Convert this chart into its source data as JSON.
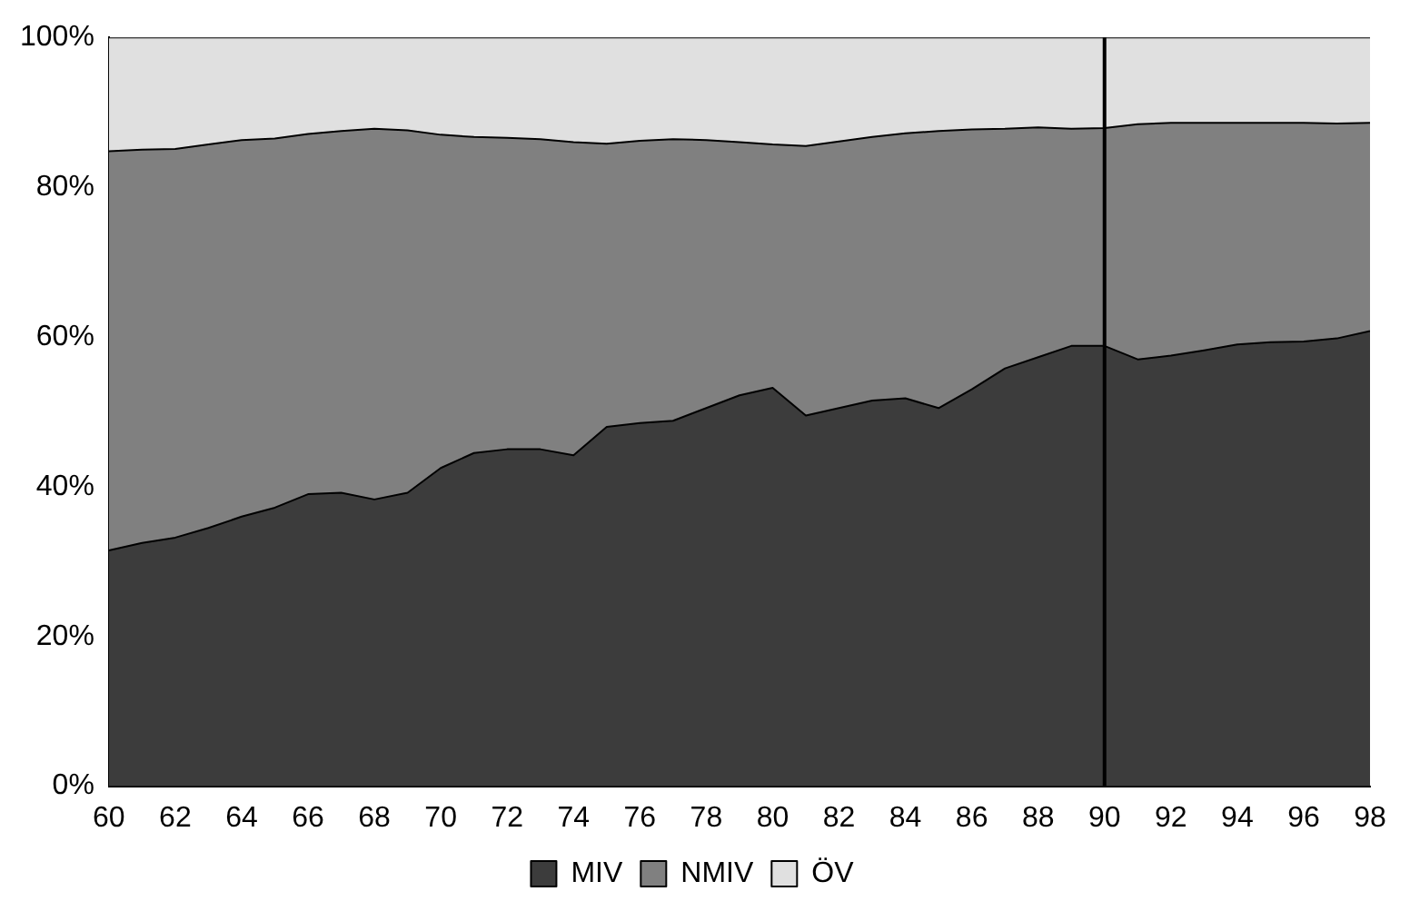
{
  "chart_data": {
    "type": "area",
    "stacked": true,
    "x": [
      60,
      61,
      62,
      63,
      64,
      65,
      66,
      67,
      68,
      69,
      70,
      71,
      72,
      73,
      74,
      75,
      76,
      77,
      78,
      79,
      80,
      81,
      82,
      83,
      84,
      85,
      86,
      87,
      88,
      89,
      90,
      91,
      92,
      93,
      94,
      95,
      96,
      97,
      98
    ],
    "series": [
      {
        "name": "MIV",
        "color": "#3c3c3c",
        "values": [
          31.5,
          32.5,
          33.2,
          34.5,
          36,
          37.2,
          39,
          39.2,
          38.3,
          39.2,
          42.5,
          44.5,
          45,
          45,
          44.2,
          48,
          48.5,
          48.8,
          50.5,
          52.2,
          53.2,
          49.5,
          50.5,
          51.5,
          51.8,
          50.5,
          53,
          55.8,
          57.3,
          58.8,
          58.8,
          57,
          57.5,
          58.2,
          59,
          59.3,
          59.4,
          59.8,
          60.8
        ]
      },
      {
        "name": "NMIV",
        "color": "#808080",
        "values": [
          53.3,
          52.5,
          51.9,
          51.2,
          50.3,
          49.3,
          48.1,
          48.3,
          49.5,
          48.4,
          44.5,
          42.2,
          41.6,
          41.4,
          41.8,
          37.8,
          37.7,
          37.6,
          35.8,
          33.8,
          32.5,
          36,
          35.6,
          35.2,
          35.4,
          37,
          34.7,
          32,
          30.7,
          29,
          29.1,
          31.4,
          31.1,
          30.4,
          29.6,
          29.3,
          29.2,
          28.7,
          27.8
        ]
      },
      {
        "name": "ÖV",
        "color": "#e0e0e0",
        "values": [
          15.2,
          15,
          14.9,
          14.3,
          13.7,
          13.5,
          12.9,
          12.5,
          12.2,
          12.4,
          13,
          13.3,
          13.4,
          13.6,
          14,
          14.2,
          13.8,
          13.6,
          13.7,
          14,
          14.3,
          14.5,
          13.9,
          13.3,
          12.8,
          12.5,
          12.3,
          12.2,
          12,
          12.2,
          12.1,
          11.6,
          11.4,
          11.4,
          11.4,
          11.4,
          11.4,
          11.5,
          11.4
        ]
      }
    ],
    "xlim": [
      60,
      98
    ],
    "xticks": [
      60,
      62,
      64,
      66,
      68,
      70,
      72,
      74,
      76,
      78,
      80,
      82,
      84,
      86,
      88,
      90,
      92,
      94,
      96,
      98
    ],
    "ylim": [
      0,
      100
    ],
    "yticks": [
      {
        "value": 0,
        "label": "0%"
      },
      {
        "value": 20,
        "label": "20%"
      },
      {
        "value": 40,
        "label": "40%"
      },
      {
        "value": 60,
        "label": "60%"
      },
      {
        "value": 80,
        "label": "80%"
      },
      {
        "value": 100,
        "label": "100%"
      }
    ],
    "ref_lines": [
      {
        "axis": "x",
        "value": 90,
        "color": "#000000"
      }
    ],
    "legend": "bottom",
    "grid": false
  }
}
